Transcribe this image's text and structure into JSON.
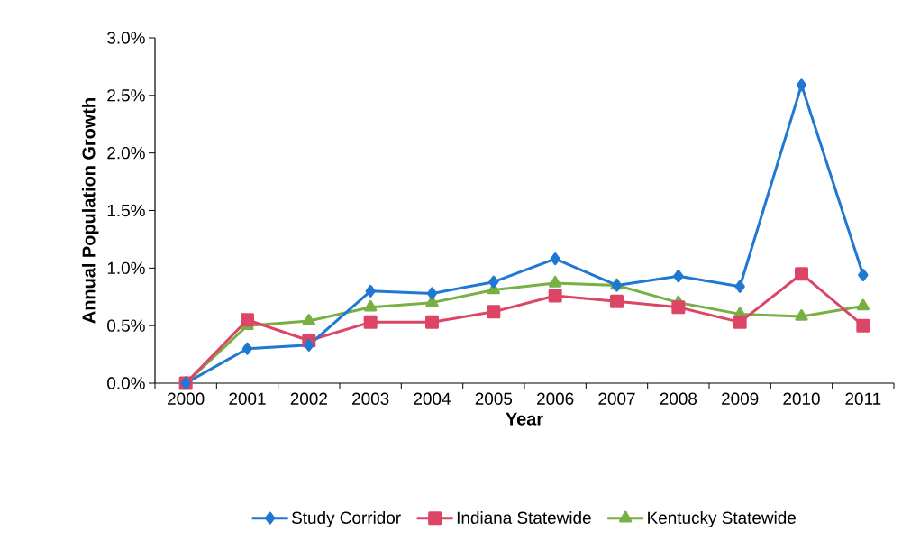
{
  "chart_data": {
    "type": "line",
    "xlabel": "Year",
    "ylabel": "Annual Population Growth",
    "categories": [
      "2000",
      "2001",
      "2002",
      "2003",
      "2004",
      "2005",
      "2006",
      "2007",
      "2008",
      "2009",
      "2010",
      "2011"
    ],
    "series": [
      {
        "name": "Study Corridor",
        "color": "#1f78d1",
        "marker": "diamond",
        "values": [
          0,
          0.3,
          0.33,
          0.8,
          0.78,
          0.88,
          1.08,
          0.85,
          0.93,
          0.84,
          2.59,
          0.94
        ]
      },
      {
        "name": "Indiana Statewide",
        "color": "#dc4566",
        "marker": "square",
        "values": [
          0,
          0.55,
          0.37,
          0.53,
          0.53,
          0.62,
          0.76,
          0.71,
          0.66,
          0.53,
          0.95,
          0.5
        ]
      },
      {
        "name": "Kentucky Statewide",
        "color": "#77b043",
        "marker": "triangle",
        "values": [
          0,
          0.5,
          0.54,
          0.66,
          0.7,
          0.81,
          0.87,
          0.85,
          0.7,
          0.6,
          0.58,
          0.67
        ]
      }
    ],
    "ylim": [
      0,
      3
    ],
    "yticks": [
      {
        "value": 0,
        "label": "0.0%"
      },
      {
        "value": 0.5,
        "label": "0.5%"
      },
      {
        "value": 1,
        "label": "1.0%"
      },
      {
        "value": 1.5,
        "label": "1.5%"
      },
      {
        "value": 2,
        "label": "2.0%"
      },
      {
        "value": 2.5,
        "label": "2.5%"
      },
      {
        "value": 3,
        "label": "3.0%"
      }
    ],
    "grid": false,
    "legend": "bottom",
    "line_style": "solid"
  }
}
